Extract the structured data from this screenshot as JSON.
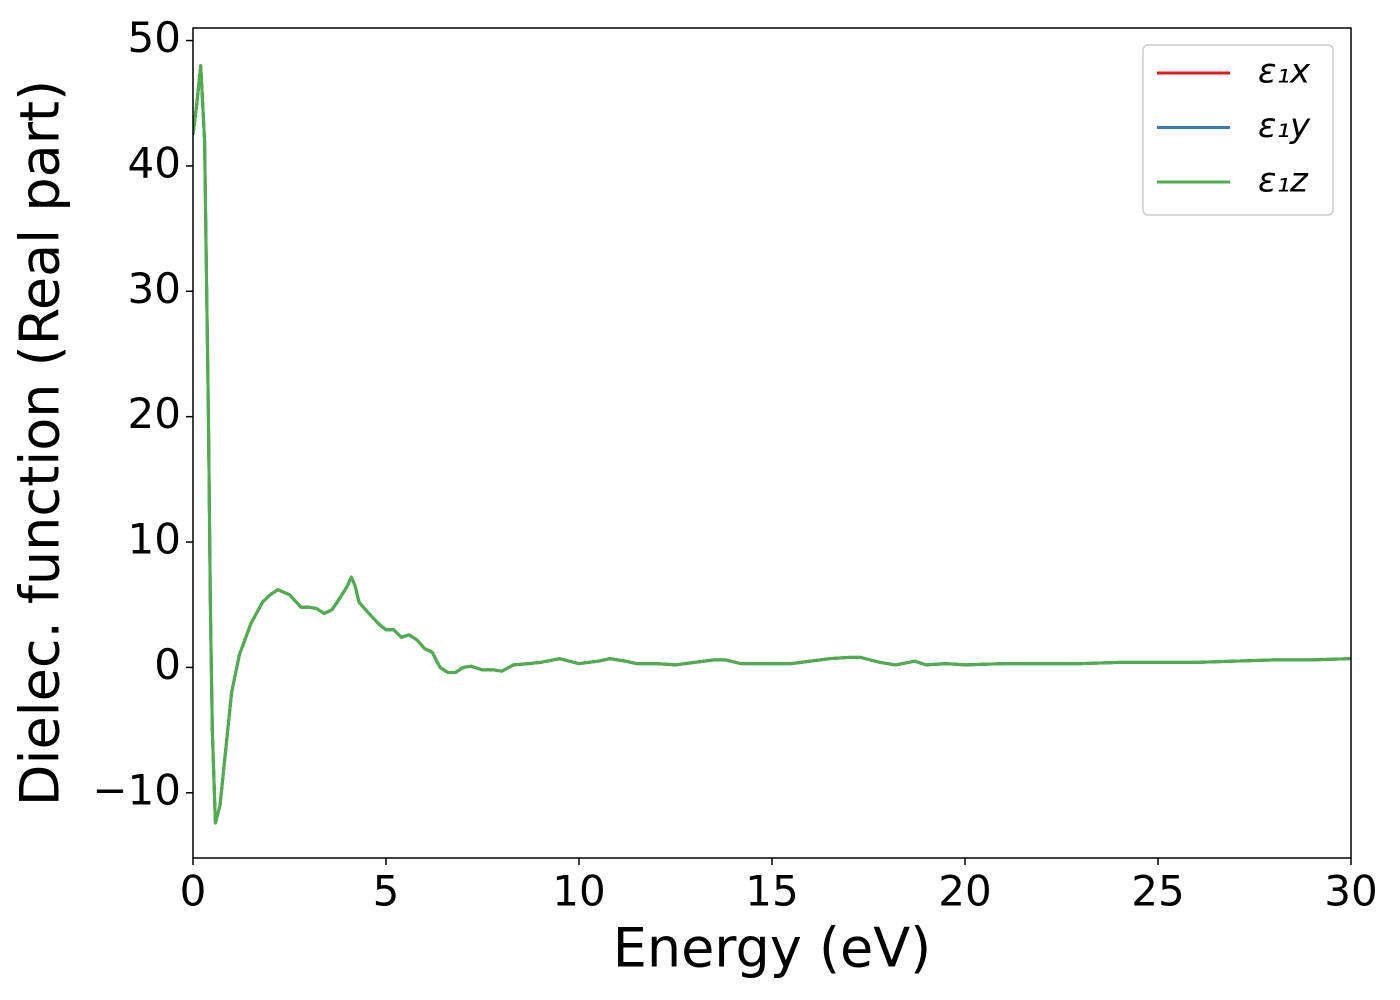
{
  "chart_data": {
    "type": "line",
    "xlabel": "Energy (eV)",
    "ylabel": "Dielec. function (Real part)",
    "x": [
      0,
      0.1,
      0.2,
      0.3,
      0.4,
      0.45,
      0.5,
      0.58,
      0.7,
      0.9,
      1.0,
      1.2,
      1.5,
      1.8,
      2.0,
      2.2,
      2.5,
      2.8,
      3.0,
      3.2,
      3.4,
      3.6,
      3.8,
      4.0,
      4.1,
      4.2,
      4.3,
      4.5,
      4.8,
      5.0,
      5.2,
      5.4,
      5.6,
      5.8,
      6.0,
      6.2,
      6.4,
      6.6,
      6.8,
      7.0,
      7.2,
      7.5,
      7.8,
      8.0,
      8.3,
      8.7,
      9.0,
      9.5,
      10.0,
      10.5,
      10.8,
      11.2,
      11.5,
      12.0,
      12.5,
      13.0,
      13.5,
      13.8,
      14.2,
      15.0,
      15.5,
      16.0,
      16.5,
      17.0,
      17.3,
      17.8,
      18.2,
      18.7,
      19.0,
      19.5,
      20.0,
      21.0,
      22.0,
      23.0,
      24.0,
      25.0,
      26.0,
      27.0,
      28.0,
      29.0,
      30.0
    ],
    "series": [
      {
        "name": "ε₁x",
        "color": "#e41a1c",
        "values": [
          42.5,
          45,
          48,
          42,
          20,
          5,
          -5,
          -12.4,
          -11,
          -5,
          -2,
          1,
          3.5,
          5.2,
          5.8,
          6.2,
          5.8,
          4.8,
          4.8,
          4.7,
          4.3,
          4.6,
          5.5,
          6.5,
          7.2,
          6.5,
          5.2,
          4.5,
          3.5,
          3.0,
          3.0,
          2.4,
          2.6,
          2.2,
          1.5,
          1.2,
          0.0,
          -0.4,
          -0.4,
          0.0,
          0.1,
          -0.2,
          -0.2,
          -0.3,
          0.2,
          0.3,
          0.4,
          0.7,
          0.3,
          0.5,
          0.7,
          0.5,
          0.3,
          0.3,
          0.2,
          0.4,
          0.6,
          0.6,
          0.3,
          0.3,
          0.3,
          0.5,
          0.7,
          0.8,
          0.8,
          0.4,
          0.2,
          0.5,
          0.2,
          0.3,
          0.2,
          0.3,
          0.3,
          0.3,
          0.4,
          0.4,
          0.4,
          0.5,
          0.6,
          0.6,
          0.7
        ]
      },
      {
        "name": "ε₁y",
        "color": "#377eb8",
        "values": [
          42.5,
          45,
          48,
          42,
          20,
          5,
          -5,
          -12.4,
          -11,
          -5,
          -2,
          1,
          3.5,
          5.2,
          5.8,
          6.2,
          5.8,
          4.8,
          4.8,
          4.7,
          4.3,
          4.6,
          5.5,
          6.5,
          7.2,
          6.5,
          5.2,
          4.5,
          3.5,
          3.0,
          3.0,
          2.4,
          2.6,
          2.2,
          1.5,
          1.2,
          0.0,
          -0.4,
          -0.4,
          0.0,
          0.1,
          -0.2,
          -0.2,
          -0.3,
          0.2,
          0.3,
          0.4,
          0.7,
          0.3,
          0.5,
          0.7,
          0.5,
          0.3,
          0.3,
          0.2,
          0.4,
          0.6,
          0.6,
          0.3,
          0.3,
          0.3,
          0.5,
          0.7,
          0.8,
          0.8,
          0.4,
          0.2,
          0.5,
          0.2,
          0.3,
          0.2,
          0.3,
          0.3,
          0.3,
          0.4,
          0.4,
          0.4,
          0.5,
          0.6,
          0.6,
          0.7
        ]
      },
      {
        "name": "ε₁z",
        "color": "#4daf4a",
        "values": [
          42.5,
          45,
          48,
          42,
          20,
          5,
          -5,
          -12.4,
          -11,
          -5,
          -2,
          1,
          3.5,
          5.2,
          5.8,
          6.2,
          5.8,
          4.8,
          4.8,
          4.7,
          4.3,
          4.6,
          5.5,
          6.5,
          7.2,
          6.5,
          5.2,
          4.5,
          3.5,
          3.0,
          3.0,
          2.4,
          2.6,
          2.2,
          1.5,
          1.2,
          0.0,
          -0.4,
          -0.4,
          0.0,
          0.1,
          -0.2,
          -0.2,
          -0.3,
          0.2,
          0.3,
          0.4,
          0.7,
          0.3,
          0.5,
          0.7,
          0.5,
          0.3,
          0.3,
          0.2,
          0.4,
          0.6,
          0.6,
          0.3,
          0.3,
          0.3,
          0.5,
          0.7,
          0.8,
          0.8,
          0.4,
          0.2,
          0.5,
          0.2,
          0.3,
          0.2,
          0.3,
          0.3,
          0.3,
          0.4,
          0.4,
          0.4,
          0.5,
          0.6,
          0.6,
          0.7
        ]
      }
    ],
    "xlim": [
      0,
      30
    ],
    "xticks": [
      0,
      5,
      10,
      15,
      20,
      25,
      30
    ],
    "ylim": [
      -15.2,
      51.0
    ],
    "yticks": [
      {
        "value": -10,
        "label": "−10"
      },
      0,
      10,
      20,
      30,
      40,
      50
    ],
    "grid": false,
    "legend": "upper right"
  }
}
